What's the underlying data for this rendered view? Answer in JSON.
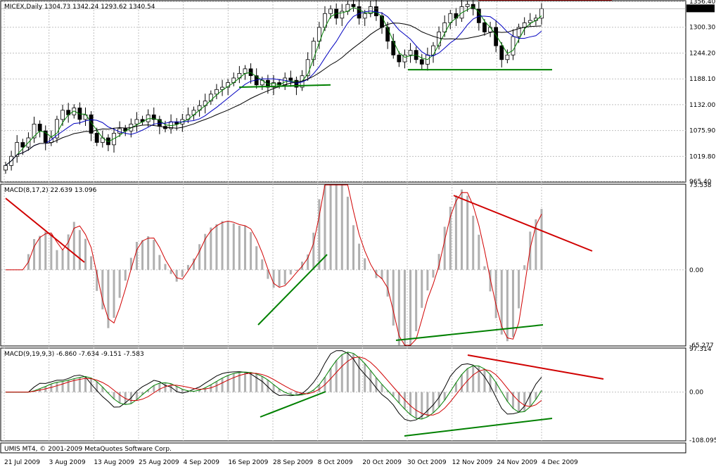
{
  "chart_data": [
    {
      "type": "candlestick",
      "title": "MICEX,Daily  1304.73 1342.24 1293.62 1340.54",
      "current_price_label": "1340.54",
      "y_ticks": [
        "1356.40",
        "1300.30",
        "1244.20",
        "1188.10",
        "1132.00",
        "1075.90",
        "1019.80",
        "965.40"
      ],
      "x_ticks": [
        "21 Jul 2009",
        "3 Aug 2009",
        "13 Aug 2009",
        "25 Aug 2009",
        "4 Sep 2009",
        "16 Sep 2009",
        "28 Sep 2009",
        "8 Oct 2009",
        "20 Oct 2009",
        "30 Oct 2009",
        "12 Nov 2009",
        "24 Nov 2009",
        "4 Dec 2009"
      ],
      "ylim": [
        965.4,
        1356.4
      ],
      "close": [
        1000,
        1020,
        1050,
        1040,
        1060,
        1090,
        1075,
        1050,
        1060,
        1100,
        1120,
        1110,
        1125,
        1100,
        1110,
        1070,
        1050,
        1060,
        1045,
        1070,
        1080,
        1075,
        1090,
        1100,
        1095,
        1110,
        1100,
        1085,
        1080,
        1095,
        1090,
        1100,
        1110,
        1120,
        1130,
        1140,
        1155,
        1165,
        1170,
        1180,
        1190,
        1200,
        1210,
        1195,
        1175,
        1185,
        1170,
        1180,
        1175,
        1190,
        1185,
        1170,
        1195,
        1230,
        1270,
        1300,
        1330,
        1340,
        1320,
        1335,
        1350,
        1345,
        1320,
        1330,
        1345,
        1325,
        1300,
        1270,
        1240,
        1225,
        1240,
        1250,
        1230,
        1220,
        1240,
        1260,
        1290,
        1310,
        1330,
        1320,
        1345,
        1350,
        1340,
        1310,
        1290,
        1300,
        1260,
        1230,
        1240,
        1280,
        1300,
        1310,
        1315,
        1320,
        1340.54
      ],
      "trend_lines": [
        {
          "color": "#d00000",
          "from": [
            680,
            1360
          ],
          "to": [
            870,
            1360
          ]
        },
        {
          "color": "#008000",
          "from": [
            340,
            1170
          ],
          "to": [
            470,
            1175
          ]
        },
        {
          "color": "#008000",
          "from": [
            580,
            1208
          ],
          "to": [
            785,
            1208
          ]
        }
      ]
    },
    {
      "type": "bar",
      "title": "MACD(8,17,2) 22.639 13.096",
      "y_ticks": [
        "73.538",
        "0.00",
        "-65.277"
      ],
      "ylim": [
        -65.277,
        73.538
      ]
    },
    {
      "type": "bar",
      "title": "MACD(9,19,9,3) -6.860 -7.634 -9.151 -7.583",
      "y_ticks": [
        "97.314",
        "0.00",
        "-108.095"
      ],
      "ylim": [
        -108.095,
        97.314
      ]
    }
  ],
  "footer": "UMIS MT4, © 2001-2009 MetaQuotes Software Corp."
}
